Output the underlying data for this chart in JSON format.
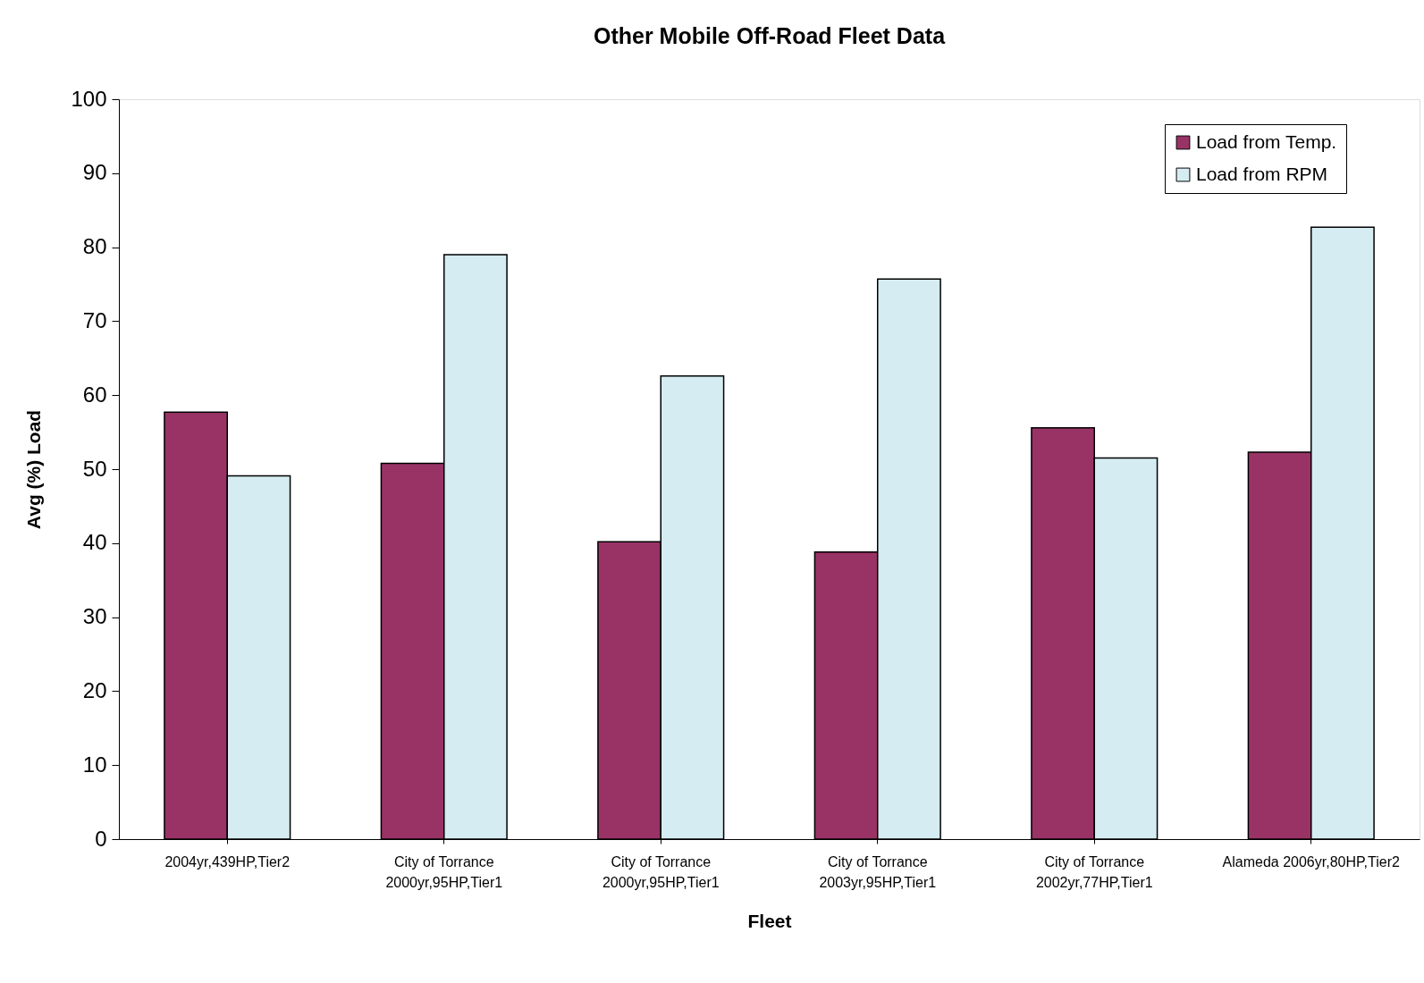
{
  "chart_data": {
    "type": "bar",
    "title": "Other Mobile Off-Road Fleet Data",
    "xlabel": "Fleet",
    "ylabel": "Avg (%) Load",
    "categories": [
      "2004yr,439HP,Tier2",
      "City of Torrance\n2000yr,95HP,Tier1",
      "City of Torrance\n2000yr,95HP,Tier1",
      "City of Torrance\n2003yr,95HP,Tier1",
      "City of Torrance\n2002yr,77HP,Tier1",
      "Alameda 2006yr,80HP,Tier2"
    ],
    "series": [
      {
        "name": "Load from Temp.",
        "color": "#993366",
        "values": [
          57.7,
          50.8,
          40.2,
          38.8,
          55.6,
          52.3
        ]
      },
      {
        "name": "Load from RPM",
        "color": "#d5ecf2",
        "values": [
          49.1,
          79.0,
          62.6,
          75.7,
          51.5,
          82.7
        ]
      }
    ],
    "ylim": [
      0,
      100
    ],
    "yticks": [
      0,
      10,
      20,
      30,
      40,
      50,
      60,
      70,
      80,
      90,
      100
    ],
    "grid": false,
    "legend": "top right"
  }
}
